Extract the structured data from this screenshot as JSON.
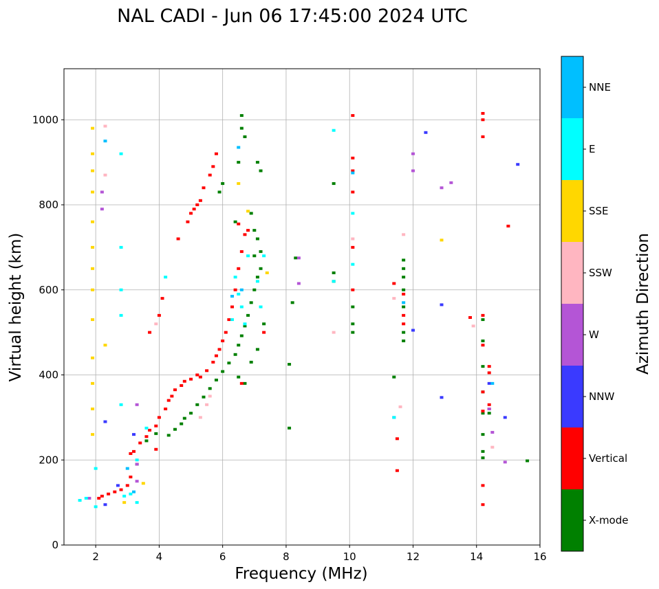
{
  "chart_data": {
    "type": "scatter",
    "title": "NAL CADI - Jun 06 17:45:00 2024 UTC",
    "xlabel": "Frequency (MHz)",
    "ylabel": "Virtual height (km)",
    "xlim": [
      1,
      16
    ],
    "ylim": [
      0,
      1120
    ],
    "xticks": [
      2,
      4,
      6,
      8,
      10,
      12,
      14,
      16
    ],
    "yticks": [
      0,
      200,
      400,
      600,
      800,
      1000
    ],
    "grid": true,
    "colorbar": {
      "label": "Azimuth Direction",
      "categories": [
        {
          "name": "X-mode",
          "color": "#008000"
        },
        {
          "name": "Vertical",
          "color": "#ff0000"
        },
        {
          "name": "NNW",
          "color": "#3a3aff"
        },
        {
          "name": "W",
          "color": "#b455d6"
        },
        {
          "name": "SSW",
          "color": "#ffb6c1"
        },
        {
          "name": "SSE",
          "color": "#ffd700"
        },
        {
          "name": "E",
          "color": "#00ffff"
        },
        {
          "name": "NNE",
          "color": "#00bfff"
        }
      ]
    },
    "series": [
      {
        "name": "X-mode",
        "points": [
          [
            3.3,
            190
          ],
          [
            3.6,
            245
          ],
          [
            3.9,
            262
          ],
          [
            4.3,
            258
          ],
          [
            4.5,
            272
          ],
          [
            4.7,
            285
          ],
          [
            4.8,
            298
          ],
          [
            5.0,
            310
          ],
          [
            5.2,
            330
          ],
          [
            5.4,
            348
          ],
          [
            5.6,
            368
          ],
          [
            5.8,
            388
          ],
          [
            6.0,
            408
          ],
          [
            6.2,
            428
          ],
          [
            6.4,
            448
          ],
          [
            6.5,
            470
          ],
          [
            6.6,
            492
          ],
          [
            6.7,
            515
          ],
          [
            6.8,
            540
          ],
          [
            6.9,
            570
          ],
          [
            7.0,
            600
          ],
          [
            7.1,
            630
          ],
          [
            7.2,
            650
          ],
          [
            6.5,
            395
          ],
          [
            6.7,
            380
          ],
          [
            6.9,
            430
          ],
          [
            7.1,
            460
          ],
          [
            7.3,
            520
          ],
          [
            6.6,
            1010
          ],
          [
            6.6,
            980
          ],
          [
            6.7,
            960
          ],
          [
            6.5,
            900
          ],
          [
            6.4,
            760
          ],
          [
            6.9,
            780
          ],
          [
            7.0,
            740
          ],
          [
            7.1,
            720
          ],
          [
            7.2,
            690
          ],
          [
            7.0,
            680
          ],
          [
            7.1,
            900
          ],
          [
            7.2,
            880
          ],
          [
            6.0,
            850
          ],
          [
            5.9,
            830
          ],
          [
            8.1,
            425
          ],
          [
            8.1,
            275
          ],
          [
            8.2,
            570
          ],
          [
            8.3,
            675
          ],
          [
            9.5,
            850
          ],
          [
            9.5,
            640
          ],
          [
            9.5,
            620
          ],
          [
            10.1,
            560
          ],
          [
            10.1,
            520
          ],
          [
            10.1,
            500
          ],
          [
            11.7,
            670
          ],
          [
            11.7,
            650
          ],
          [
            11.7,
            630
          ],
          [
            11.7,
            600
          ],
          [
            11.7,
            560
          ],
          [
            11.7,
            500
          ],
          [
            11.7,
            480
          ],
          [
            11.4,
            395
          ],
          [
            14.2,
            530
          ],
          [
            14.2,
            480
          ],
          [
            14.2,
            420
          ],
          [
            14.2,
            360
          ],
          [
            14.2,
            310
          ],
          [
            14.2,
            260
          ],
          [
            14.2,
            220
          ],
          [
            14.2,
            205
          ],
          [
            14.4,
            310
          ],
          [
            15.6,
            198
          ]
        ]
      },
      {
        "name": "Vertical",
        "points": [
          [
            2.1,
            110
          ],
          [
            2.2,
            115
          ],
          [
            2.4,
            120
          ],
          [
            2.6,
            125
          ],
          [
            2.8,
            130
          ],
          [
            3.0,
            140
          ],
          [
            3.1,
            160
          ],
          [
            3.1,
            215
          ],
          [
            3.2,
            220
          ],
          [
            3.4,
            240
          ],
          [
            3.6,
            255
          ],
          [
            3.7,
            270
          ],
          [
            3.9,
            280
          ],
          [
            4.0,
            300
          ],
          [
            4.2,
            320
          ],
          [
            4.3,
            340
          ],
          [
            4.4,
            350
          ],
          [
            4.5,
            365
          ],
          [
            4.7,
            375
          ],
          [
            4.8,
            385
          ],
          [
            5.0,
            390
          ],
          [
            5.2,
            400
          ],
          [
            5.3,
            395
          ],
          [
            5.5,
            410
          ],
          [
            5.7,
            430
          ],
          [
            5.8,
            445
          ],
          [
            5.9,
            460
          ],
          [
            6.0,
            480
          ],
          [
            6.1,
            500
          ],
          [
            6.2,
            530
          ],
          [
            6.3,
            560
          ],
          [
            6.4,
            600
          ],
          [
            6.5,
            650
          ],
          [
            6.6,
            690
          ],
          [
            6.7,
            730
          ],
          [
            6.5,
            755
          ],
          [
            6.8,
            740
          ],
          [
            6.6,
            380
          ],
          [
            4.0,
            540
          ],
          [
            4.1,
            580
          ],
          [
            3.7,
            500
          ],
          [
            4.6,
            720
          ],
          [
            4.9,
            760
          ],
          [
            5.0,
            780
          ],
          [
            5.2,
            800
          ],
          [
            5.4,
            840
          ],
          [
            5.6,
            870
          ],
          [
            5.8,
            920
          ],
          [
            5.7,
            890
          ],
          [
            5.1,
            790
          ],
          [
            5.3,
            810
          ],
          [
            7.3,
            500
          ],
          [
            3.9,
            225
          ],
          [
            10.1,
            1010
          ],
          [
            10.1,
            910
          ],
          [
            10.1,
            880
          ],
          [
            10.1,
            830
          ],
          [
            10.1,
            700
          ],
          [
            10.1,
            600
          ],
          [
            11.4,
            615
          ],
          [
            11.7,
            590
          ],
          [
            11.7,
            540
          ],
          [
            11.7,
            520
          ],
          [
            11.5,
            250
          ],
          [
            11.5,
            175
          ],
          [
            14.2,
            1015
          ],
          [
            14.2,
            1000
          ],
          [
            14.2,
            960
          ],
          [
            14.2,
            540
          ],
          [
            14.2,
            470
          ],
          [
            14.2,
            360
          ],
          [
            14.2,
            315
          ],
          [
            14.2,
            140
          ],
          [
            14.2,
            95
          ],
          [
            14.4,
            420
          ],
          [
            14.4,
            405
          ],
          [
            14.4,
            330
          ],
          [
            14.4,
            320
          ],
          [
            13.8,
            535
          ],
          [
            15.0,
            750
          ]
        ]
      },
      {
        "name": "NNW",
        "points": [
          [
            2.3,
            95
          ],
          [
            2.3,
            290
          ],
          [
            2.7,
            140
          ],
          [
            12.4,
            970
          ],
          [
            12.0,
            505
          ],
          [
            12.9,
            565
          ],
          [
            12.9,
            347
          ],
          [
            14.4,
            380
          ],
          [
            14.9,
            300
          ],
          [
            15.3,
            895
          ],
          [
            3.2,
            260
          ]
        ]
      },
      {
        "name": "W",
        "points": [
          [
            1.8,
            110
          ],
          [
            2.2,
            790
          ],
          [
            2.2,
            830
          ],
          [
            3.3,
            190
          ],
          [
            3.3,
            150
          ],
          [
            3.3,
            330
          ],
          [
            8.4,
            675
          ],
          [
            8.4,
            615
          ],
          [
            12.0,
            920
          ],
          [
            12.0,
            880
          ],
          [
            12.9,
            840
          ],
          [
            13.2,
            852
          ],
          [
            14.4,
            320
          ],
          [
            14.5,
            265
          ],
          [
            14.9,
            195
          ],
          [
            11.4,
            300
          ]
        ]
      },
      {
        "name": "SSW",
        "points": [
          [
            2.3,
            985
          ],
          [
            2.3,
            870
          ],
          [
            3.9,
            520
          ],
          [
            5.3,
            300
          ],
          [
            5.5,
            330
          ],
          [
            5.6,
            350
          ],
          [
            10.1,
            720
          ],
          [
            9.5,
            500
          ],
          [
            11.4,
            580
          ],
          [
            11.6,
            325
          ],
          [
            11.7,
            730
          ],
          [
            13.9,
            515
          ],
          [
            14.5,
            230
          ]
        ]
      },
      {
        "name": "SSE",
        "points": [
          [
            1.9,
            980
          ],
          [
            1.9,
            920
          ],
          [
            1.9,
            880
          ],
          [
            1.9,
            830
          ],
          [
            1.9,
            760
          ],
          [
            1.9,
            700
          ],
          [
            1.9,
            650
          ],
          [
            1.9,
            600
          ],
          [
            1.9,
            530
          ],
          [
            1.9,
            440
          ],
          [
            1.9,
            380
          ],
          [
            1.9,
            320
          ],
          [
            1.9,
            260
          ],
          [
            2.3,
            470
          ],
          [
            2.9,
            100
          ],
          [
            3.5,
            145
          ],
          [
            6.5,
            850
          ],
          [
            6.8,
            785
          ],
          [
            7.4,
            640
          ],
          [
            12.9,
            717
          ]
        ]
      },
      {
        "name": "E",
        "points": [
          [
            1.5,
            105
          ],
          [
            1.7,
            110
          ],
          [
            2.0,
            90
          ],
          [
            2.0,
            180
          ],
          [
            2.8,
            920
          ],
          [
            2.8,
            700
          ],
          [
            2.8,
            600
          ],
          [
            2.8,
            540
          ],
          [
            2.8,
            330
          ],
          [
            2.9,
            115
          ],
          [
            3.1,
            120
          ],
          [
            3.3,
            200
          ],
          [
            3.3,
            100
          ],
          [
            3.6,
            275
          ],
          [
            4.2,
            630
          ],
          [
            6.3,
            530
          ],
          [
            6.4,
            630
          ],
          [
            6.5,
            590
          ],
          [
            6.6,
            560
          ],
          [
            6.7,
            520
          ],
          [
            6.8,
            680
          ],
          [
            7.1,
            620
          ],
          [
            7.2,
            560
          ],
          [
            7.3,
            680
          ],
          [
            9.5,
            975
          ],
          [
            9.5,
            620
          ],
          [
            10.1,
            780
          ],
          [
            10.1,
            660
          ],
          [
            11.4,
            300
          ]
        ]
      },
      {
        "name": "NNE",
        "points": [
          [
            2.3,
            950
          ],
          [
            3.0,
            180
          ],
          [
            3.2,
            125
          ],
          [
            6.5,
            935
          ],
          [
            6.3,
            585
          ],
          [
            6.6,
            600
          ],
          [
            10.1,
            875
          ],
          [
            11.7,
            570
          ],
          [
            14.5,
            380
          ]
        ]
      }
    ]
  }
}
